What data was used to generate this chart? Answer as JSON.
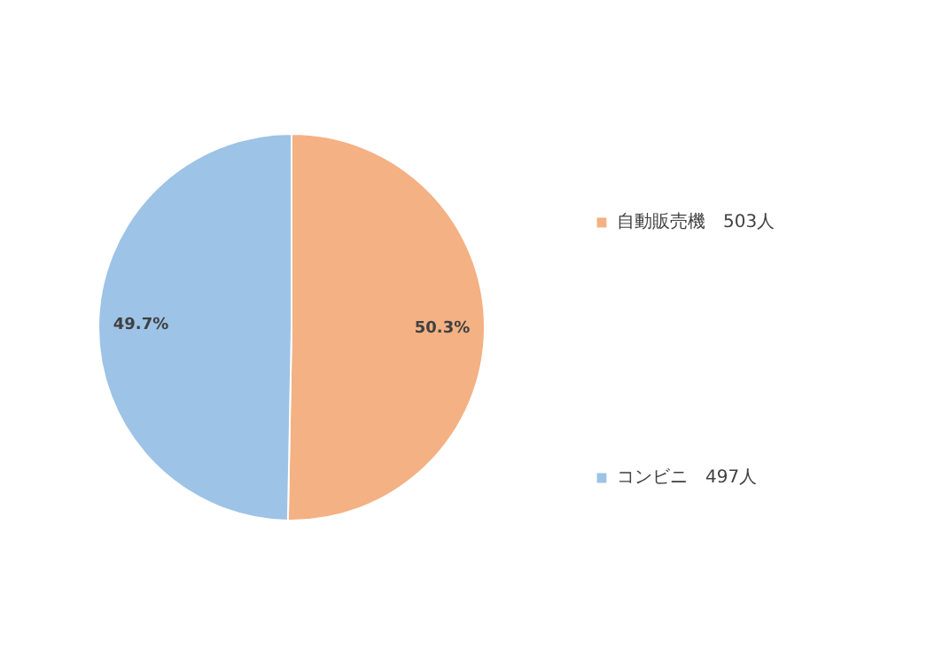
{
  "chart_data": {
    "type": "pie",
    "categories": [
      "自動販売機　503人",
      "コンビニ　497人"
    ],
    "values": [
      50.3,
      49.7
    ],
    "colors": [
      "#f4b183",
      "#9dc3e6"
    ],
    "value_labels": [
      "50.3%",
      "49.7%"
    ],
    "legend": "right"
  }
}
